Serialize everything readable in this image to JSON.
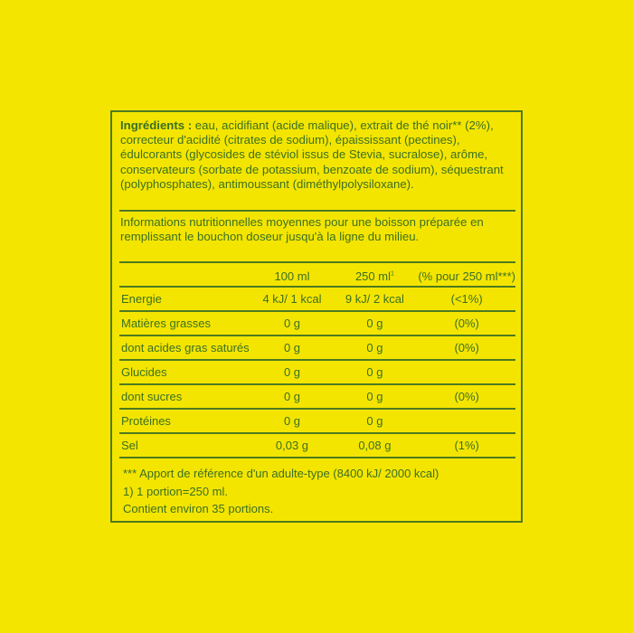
{
  "ingredients": {
    "label": "Ingrédients :",
    "text": " eau, acidifiant (acide malique), extrait de thé noir** (2%), correcteur d'acidité (citrates de sodium), épaississant (pectines), édulcorants (glycosides de stéviol issus de Stevia, sucralose), arôme, conservateurs (sorbate de potassium, benzoate de sodium), séquestrant (polyphosphates), antimoussant (diméthylpolysiloxane)."
  },
  "info": "Informations nutritionnelles moyennes pour une boisson préparée en remplissant le bouchon doseur jusqu'à la ligne du milieu.",
  "table": {
    "headers": [
      "",
      "100 ml",
      "250 ml",
      "(% pour 250 ml***)"
    ],
    "header_sup": "1",
    "rows": [
      [
        "Energie",
        "4 kJ/ 1 kcal",
        "9 kJ/ 2 kcal",
        "(<1%)"
      ],
      [
        "Matières grasses",
        "0 g",
        "0 g",
        "(0%)"
      ],
      [
        "dont acides gras saturés",
        "0 g",
        "0 g",
        "(0%)"
      ],
      [
        "Glucides",
        "0 g",
        "0 g",
        ""
      ],
      [
        "dont sucres",
        "0 g",
        "0 g",
        "(0%)"
      ],
      [
        "Protéines",
        "0 g",
        "0 g",
        ""
      ],
      [
        "Sel",
        "0,03 g",
        "0,08 g",
        "(1%)"
      ]
    ]
  },
  "footnotes": [
    "*** Apport de référence d'un adulte-type (8400 kJ/ 2000 kcal)",
    "1) 1 portion=250 ml.",
    "Contient environ 35 portions."
  ],
  "colors": {
    "background": "#f4e500",
    "text": "#3a7024"
  }
}
